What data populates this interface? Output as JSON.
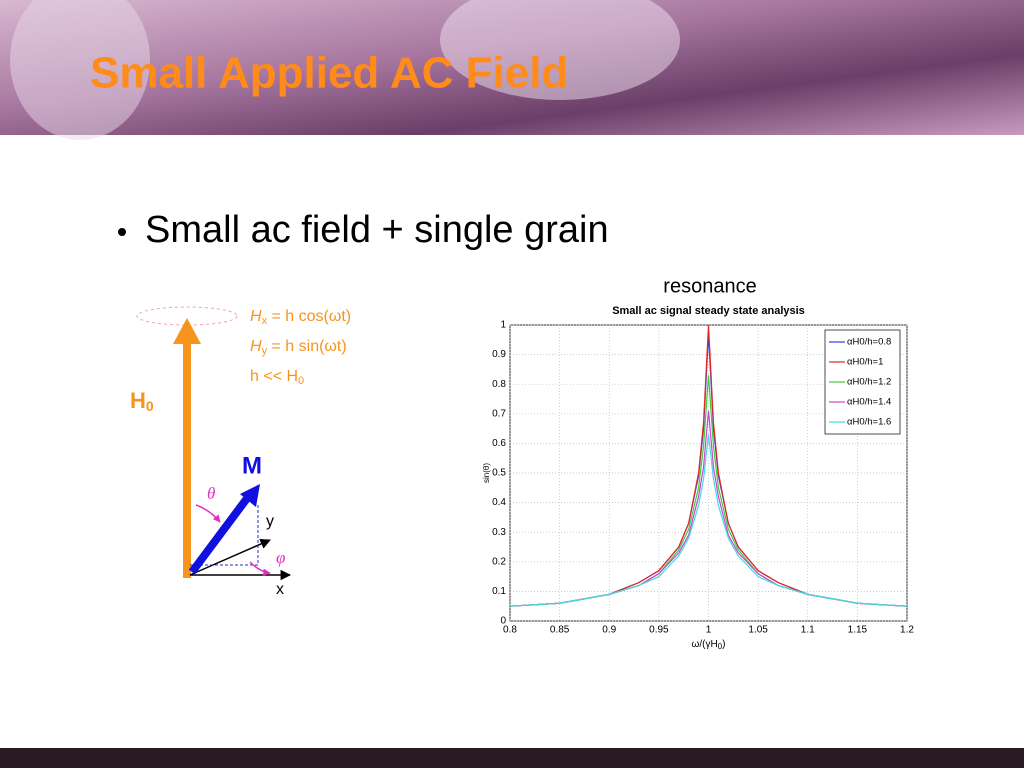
{
  "header": {
    "title": "Small Applied AC Field"
  },
  "bullets": [
    "Small ac field + single grain"
  ],
  "diagram": {
    "field_label": [
      "H",
      "0"
    ],
    "moment_label": "M",
    "equations": [
      [
        "H",
        "x",
        " = h cos(ωt)"
      ],
      [
        "H",
        "y",
        " = h sin(ωt)"
      ],
      [
        "h << H",
        "0"
      ]
    ],
    "theta": "θ",
    "phi": "φ",
    "x_axis": "x",
    "y_axis": "y"
  },
  "annotation": "resonance",
  "chart_data": {
    "type": "line",
    "title": "Small ac signal steady state analysis",
    "xlabel": [
      "ω/(γH",
      "0",
      ")"
    ],
    "ylabel": "sin(θ)",
    "x": [
      0.8,
      0.85,
      0.9,
      0.93,
      0.95,
      0.97,
      0.98,
      0.99,
      0.995,
      1,
      1.005,
      1.01,
      1.02,
      1.03,
      1.05,
      1.07,
      1.1,
      1.15,
      1.2
    ],
    "series": [
      {
        "name": "αH0/h=0.8",
        "color": "#3a3ad8",
        "values": [
          0.05,
          0.06,
          0.09,
          0.13,
          0.17,
          0.25,
          0.33,
          0.49,
          0.65,
          0.97,
          0.65,
          0.49,
          0.33,
          0.25,
          0.17,
          0.13,
          0.09,
          0.06,
          0.05
        ]
      },
      {
        "name": "αH0/h=1",
        "color": "#e02828",
        "values": [
          0.05,
          0.06,
          0.09,
          0.13,
          0.17,
          0.25,
          0.33,
          0.5,
          0.67,
          1,
          0.67,
          0.5,
          0.33,
          0.25,
          0.17,
          0.13,
          0.09,
          0.06,
          0.05
        ]
      },
      {
        "name": "αH0/h=1.2",
        "color": "#38d038",
        "values": [
          0.05,
          0.06,
          0.09,
          0.12,
          0.16,
          0.24,
          0.31,
          0.45,
          0.59,
          0.83,
          0.59,
          0.45,
          0.31,
          0.24,
          0.16,
          0.12,
          0.09,
          0.06,
          0.05
        ]
      },
      {
        "name": "αH0/h=1.4",
        "color": "#d040d8",
        "values": [
          0.05,
          0.06,
          0.09,
          0.12,
          0.16,
          0.23,
          0.29,
          0.42,
          0.52,
          0.71,
          0.52,
          0.42,
          0.29,
          0.23,
          0.16,
          0.12,
          0.09,
          0.06,
          0.05
        ]
      },
      {
        "name": "αH0/h=1.6",
        "color": "#40dce0",
        "values": [
          0.05,
          0.06,
          0.09,
          0.12,
          0.15,
          0.22,
          0.28,
          0.39,
          0.48,
          0.63,
          0.48,
          0.39,
          0.28,
          0.22,
          0.15,
          0.12,
          0.09,
          0.06,
          0.05
        ]
      }
    ],
    "xlim": [
      0.8,
      1.2
    ],
    "ylim": [
      0,
      1
    ],
    "xticks": [
      0.8,
      0.85,
      0.9,
      0.95,
      1,
      1.05,
      1.1,
      1.15,
      1.2
    ],
    "yticks": [
      0,
      0.1,
      0.2,
      0.3,
      0.4,
      0.5,
      0.6,
      0.7,
      0.8,
      0.9,
      1
    ],
    "grid": true,
    "legend": "upper right"
  }
}
